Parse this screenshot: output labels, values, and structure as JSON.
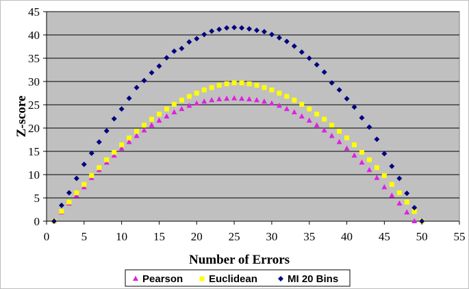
{
  "chart_data": {
    "type": "scatter",
    "title": "",
    "xlabel": "Number of Errors",
    "ylabel": "Z-score",
    "xlim": [
      0,
      55
    ],
    "ylim": [
      0,
      45
    ],
    "xticks": [
      "0",
      "5",
      "10",
      "15",
      "20",
      "25",
      "30",
      "35",
      "40",
      "45",
      "50",
      "55"
    ],
    "yticks": [
      "0",
      "5",
      "10",
      "15",
      "20",
      "25",
      "30",
      "35",
      "40",
      "45"
    ],
    "grid": "horizontal",
    "plot_background": "#c0c0c0",
    "legend_position": "bottom",
    "x": [
      1,
      2,
      3,
      4,
      5,
      6,
      7,
      8,
      9,
      10,
      11,
      12,
      13,
      14,
      15,
      16,
      17,
      18,
      19,
      20,
      21,
      22,
      23,
      24,
      25,
      26,
      27,
      28,
      29,
      30,
      31,
      32,
      33,
      34,
      35,
      36,
      37,
      38,
      39,
      40,
      41,
      42,
      43,
      44,
      45,
      46,
      47,
      48,
      49,
      50
    ],
    "series": [
      {
        "name": "Pearson",
        "color": "#e020e0",
        "marker": "triangle",
        "values": [
          0,
          1.9,
          3.8,
          5.5,
          7.3,
          9.3,
          11.0,
          12.6,
          14.1,
          15.6,
          17.0,
          18.3,
          19.5,
          20.6,
          21.6,
          22.5,
          23.4,
          24.1,
          24.8,
          25.3,
          25.7,
          26.0,
          26.2,
          26.3,
          26.4,
          26.3,
          26.2,
          26.0,
          25.7,
          25.3,
          24.8,
          24.1,
          23.4,
          22.5,
          21.6,
          20.6,
          19.5,
          18.3,
          17.0,
          15.6,
          14.1,
          12.6,
          11.0,
          9.3,
          7.3,
          5.5,
          3.8,
          1.9,
          0,
          null
        ]
      },
      {
        "name": "Euclidean",
        "color": "#ffff00",
        "marker": "square",
        "values": [
          0,
          2.1,
          4.1,
          6.1,
          7.9,
          9.8,
          11.5,
          13.2,
          14.8,
          16.4,
          17.9,
          19.3,
          20.6,
          21.9,
          23.0,
          24.1,
          25.1,
          26.0,
          26.8,
          27.5,
          28.2,
          28.7,
          29.2,
          29.5,
          29.7,
          29.7,
          29.5,
          29.2,
          28.7,
          28.2,
          27.5,
          26.8,
          26.0,
          25.1,
          24.1,
          23.0,
          21.9,
          20.6,
          19.3,
          17.9,
          16.4,
          14.8,
          13.2,
          11.5,
          9.8,
          7.9,
          6.1,
          4.1,
          2.1,
          0
        ]
      },
      {
        "name": "MI 20 Bins",
        "color": "#000080",
        "marker": "diamond",
        "values": [
          0,
          3.4,
          6.1,
          9.2,
          12.2,
          14.6,
          17.0,
          19.4,
          22.0,
          24.1,
          26.4,
          28.7,
          30.2,
          31.9,
          33.3,
          35.1,
          36.5,
          37.1,
          38.5,
          39.2,
          40.1,
          40.8,
          41.2,
          41.5,
          41.6,
          41.5,
          41.3,
          41.0,
          40.7,
          40.1,
          39.4,
          38.6,
          37.6,
          36.3,
          35.0,
          33.6,
          32.0,
          29.7,
          28.2,
          26.3,
          24.5,
          22.2,
          20.2,
          17.6,
          14.5,
          11.8,
          9.2,
          6.0,
          2.9,
          0
        ]
      }
    ]
  }
}
